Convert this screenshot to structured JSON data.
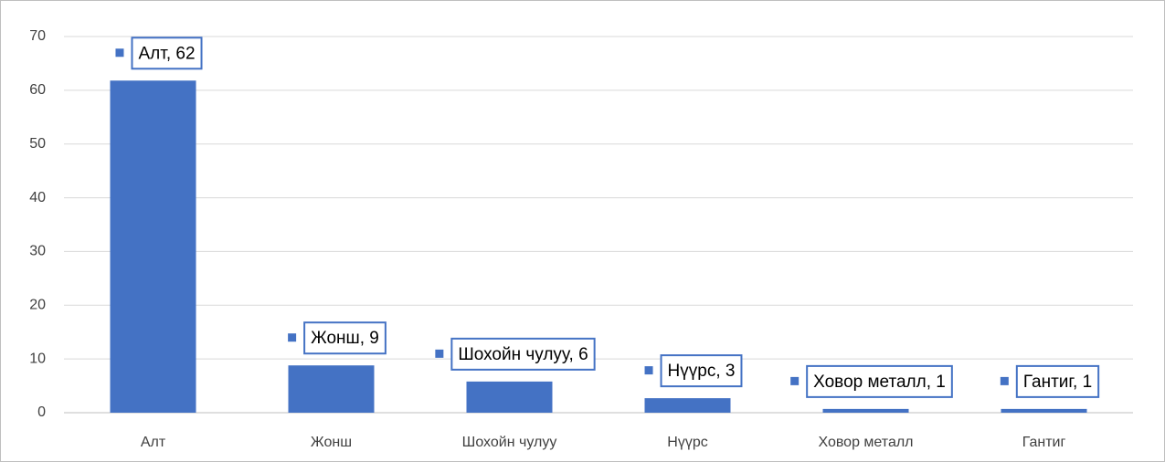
{
  "chart_data": {
    "type": "bar",
    "categories": [
      "Алт",
      "Жонш",
      "Шохойн чулуу",
      "Нүүрс",
      "Ховор металл",
      "Гантиг"
    ],
    "values": [
      61.8,
      8.8,
      5.8,
      2.7,
      0.7,
      0.7
    ],
    "value_labels": [
      "Алт, 62",
      "Жонш, 9",
      "Шохойн чулуу, 6",
      "Нүүрс, 3",
      "Ховор металл, 1",
      "Гантиг, 1"
    ],
    "color": "#4472c4",
    "ylim": [
      0,
      70
    ],
    "yticks": [
      0,
      10,
      20,
      30,
      40,
      50,
      60,
      70
    ],
    "grid": true
  }
}
